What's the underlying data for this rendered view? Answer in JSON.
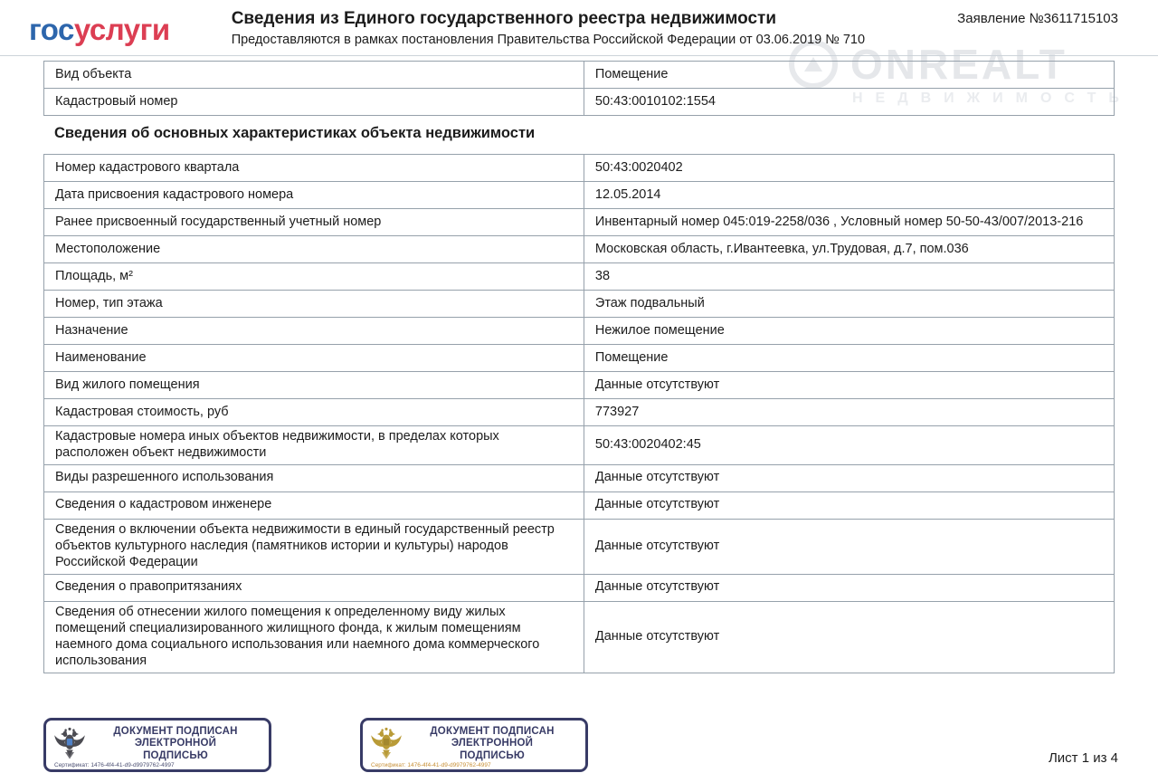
{
  "header": {
    "logo_part_blue": "гос",
    "logo_part_red": "услуги",
    "title": "Сведения из Единого государственного реестра недвижимости",
    "subtitle": "Предоставляются в рамках постановления Правительства Российской Федерации от 03.06.2019 № 710",
    "application": "Заявление №3611715103"
  },
  "watermark": {
    "brand": "ONREALT",
    "sub": "НЕДВИЖИМОСТЬ"
  },
  "object_table": {
    "rows": [
      {
        "label": "Вид объекта",
        "value": "Помещение"
      },
      {
        "label": "Кадастровый номер",
        "value": "50:43:0010102:1554"
      }
    ]
  },
  "section_title": "Сведения об основных характеристиках объекта недвижимости",
  "main_table": {
    "rows": [
      {
        "label": "Номер кадастрового квартала",
        "value": "50:43:0020402"
      },
      {
        "label": "Дата присвоения кадастрового номера",
        "value": "12.05.2014"
      },
      {
        "label": "Ранее присвоенный государственный учетный номер",
        "value": "Инвентарный номер 045:019-2258/036 , Условный номер 50-50-43/007/2013-216"
      },
      {
        "label": "Местоположение",
        "value": "Московская область, г.Ивантеевка, ул.Трудовая, д.7, пом.036"
      },
      {
        "label": "Площадь, м²",
        "value": "38"
      },
      {
        "label": "Номер, тип этажа",
        "value": "Этаж подвальный"
      },
      {
        "label": "Назначение",
        "value": "Нежилое помещение"
      },
      {
        "label": "Наименование",
        "value": "Помещение"
      },
      {
        "label": "Вид жилого помещения",
        "value": "Данные отсутствуют"
      },
      {
        "label": "Кадастровая стоимость, руб",
        "value": "773927"
      },
      {
        "label": "Кадастровые номера иных объектов недвижимости, в пределах которых расположен объект недвижимости",
        "value": "50:43:0020402:45"
      },
      {
        "label": "Виды разрешенного использования",
        "value": "Данные отсутствуют"
      },
      {
        "label": "Сведения о кадастровом инженере",
        "value": "Данные отсутствуют"
      },
      {
        "label": "Сведения о включении объекта недвижимости в единый государственный реестр объектов культурного наследия (памятников истории и культуры) народов Российской Федерации",
        "value": "Данные отсутствуют"
      },
      {
        "label": "Сведения о правопритязаниях",
        "value": "Данные отсутствуют"
      },
      {
        "label": "Сведения об отнесении жилого помещения к определенному виду жилых помещений специализированного жилищного фонда, к жилым помещениям наемного дома социального использования или наемного дома коммерческого использования",
        "value": "Данные отсутствуют"
      }
    ]
  },
  "stamps": [
    {
      "line1": "ДОКУМЕНТ ПОДПИСАН",
      "line2": "ЭЛЕКТРОННОЙ",
      "line3": "ПОДПИСЬЮ",
      "cert_line": "Сертификат: 1476-4f4-41-d9-d9979762-4997",
      "eagle_color": "#4b4b52",
      "shield_color": "#4f81c7",
      "cert_color": "#4b4f72"
    },
    {
      "line1": "ДОКУМЕНТ ПОДПИСАН",
      "line2": "ЭЛЕКТРОННОЙ",
      "line3": "ПОДПИСЬЮ",
      "cert_line": "Сертификат: 1476-4f4-41-d9-d9979762-4997",
      "eagle_color": "#b99b37",
      "shield_color": "#a3882e",
      "cert_color": "#c78f35"
    }
  ],
  "footer": {
    "page_label": "Лист 1 из 4"
  },
  "colors": {
    "logo_blue": "#2d66ac",
    "logo_red": "#dc3e53",
    "table_border": "#96a1ab",
    "stamp_navy": "#383b66"
  }
}
